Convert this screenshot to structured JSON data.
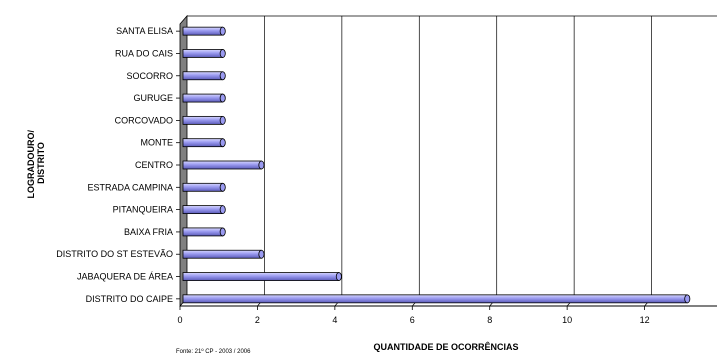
{
  "chart_data": {
    "type": "bar",
    "orientation": "horizontal",
    "categories": [
      "SANTA ELISA",
      "RUA DO CAIS",
      "SOCORRO",
      "GURUGE",
      "CORCOVADO",
      "MONTE",
      "CENTRO",
      "ESTRADA CAMPINA",
      "PITANQUEIRA",
      "BAIXA FRIA",
      "DISTRITO DO ST ESTEVÃO",
      "JABAQUERA DE ÁREA",
      "DISTRITO DO CAIPE"
    ],
    "values": [
      1,
      1,
      1,
      1,
      1,
      1,
      2,
      1,
      1,
      1,
      2,
      4,
      13
    ],
    "xlim": [
      0,
      14
    ],
    "xticks": [
      0,
      2,
      4,
      6,
      8,
      10,
      12,
      14
    ],
    "xlabel": "QUANTIDADE DE OCORRÊNCIAS",
    "ylabel_lines": [
      "LOGRADOURO/",
      "DISTRITO"
    ],
    "source": "Fonte: 21º CP - 2003 / 2006",
    "grid": "vertical",
    "legend": "none",
    "colors": {
      "bar": "#9a9af0",
      "bar_dark": "#5a5ab8",
      "wall": "#808080"
    }
  }
}
